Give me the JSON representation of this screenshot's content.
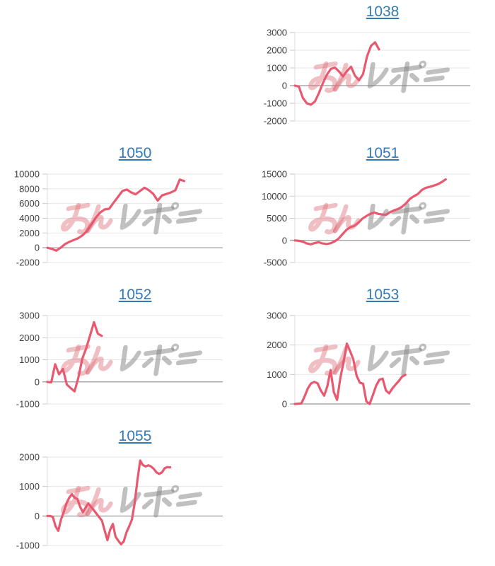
{
  "page": {
    "background": "#ffffff",
    "link_color": "#337ab7",
    "line_color": "#e8586f",
    "grid_color": "#e6e6e6",
    "zero_line_color": "#9a9a9a",
    "axis_color": "#dcdcdc",
    "tick_color": "#c9c9c9",
    "tick_label_color": "#404040"
  },
  "watermark": {
    "text": "みんレポ",
    "pink_color": "rgba(222,112,124,0.45)",
    "gray_color": "rgba(130,130,130,0.50)"
  },
  "chart_data": [
    {
      "type": "line",
      "title": "1038",
      "row": 0,
      "col": 1,
      "ylim": [
        -2000,
        3000
      ],
      "y_step": 1000,
      "y_ticks": [
        "3000",
        "2000",
        "1000",
        "0",
        "-1000",
        "-2000"
      ],
      "x_fraction": 0.48,
      "grid": true,
      "values": [
        0,
        -60,
        -700,
        -1000,
        -1080,
        -900,
        -420,
        150,
        620,
        950,
        1020,
        800,
        520,
        820,
        1070,
        560,
        300,
        650,
        1650,
        2250,
        2450,
        2050
      ]
    },
    {
      "type": "line",
      "title": "1050",
      "row": 1,
      "col": 0,
      "ylim": [
        -2000,
        10000
      ],
      "y_step": 2000,
      "y_ticks": [
        "10000",
        "8000",
        "6000",
        "4000",
        "2000",
        "0",
        "-2000"
      ],
      "x_fraction": 0.78,
      "grid": true,
      "values": [
        0,
        -150,
        -400,
        0,
        500,
        800,
        1050,
        1300,
        1700,
        2300,
        3200,
        4100,
        4800,
        5200,
        5300,
        6100,
        6900,
        7700,
        7900,
        7500,
        7250,
        7700,
        8150,
        7800,
        7300,
        6400,
        7100,
        7300,
        7500,
        7800,
        9250,
        9050
      ]
    },
    {
      "type": "line",
      "title": "1051",
      "row": 1,
      "col": 1,
      "ylim": [
        -5000,
        15000
      ],
      "y_step": 5000,
      "y_ticks": [
        "15000",
        "10000",
        "5000",
        "0",
        "-5000"
      ],
      "x_fraction": 0.86,
      "grid": true,
      "values": [
        0,
        -100,
        -300,
        -700,
        -880,
        -600,
        -430,
        -700,
        -830,
        -650,
        -250,
        400,
        1400,
        2400,
        3000,
        3300,
        4000,
        4900,
        5500,
        6000,
        6300,
        6000,
        5850,
        5800,
        6400,
        6800,
        7100,
        7600,
        8400,
        9400,
        10000,
        10500,
        11400,
        11900,
        12100,
        12400,
        12700,
        13200,
        13800
      ]
    },
    {
      "type": "line",
      "title": "1052",
      "row": 2,
      "col": 0,
      "ylim": [
        -1000,
        3000
      ],
      "y_step": 1000,
      "y_ticks": [
        "3000",
        "2000",
        "1000",
        "0",
        "-1000"
      ],
      "x_fraction": 0.31,
      "grid": true,
      "values": [
        0,
        -20,
        800,
        340,
        580,
        -120,
        -280,
        -430,
        200,
        1050,
        1520,
        2100,
        2700,
        2180,
        2080
      ]
    },
    {
      "type": "line",
      "title": "1053",
      "row": 2,
      "col": 1,
      "ylim": [
        0,
        3000
      ],
      "y_step": 1000,
      "y_ticks": [
        "3000",
        "2000",
        "1000",
        "0"
      ],
      "x_fraction": 0.63,
      "grid": true,
      "values": [
        0,
        10,
        20,
        260,
        530,
        700,
        750,
        700,
        450,
        280,
        610,
        1150,
        400,
        140,
        880,
        1430,
        2050,
        1790,
        1510,
        960,
        720,
        690,
        90,
        0,
        300,
        620,
        820,
        860,
        460,
        360,
        530,
        660,
        780,
        930,
        990
      ]
    },
    {
      "type": "line",
      "title": "1055",
      "row": 3,
      "col": 0,
      "ylim": [
        -1000,
        2000
      ],
      "y_step": 1000,
      "y_ticks": [
        "2000",
        "1000",
        "0",
        "-1000"
      ],
      "x_fraction": 0.7,
      "grid": true,
      "values": [
        0,
        0,
        -30,
        -350,
        -500,
        -120,
        130,
        430,
        620,
        740,
        620,
        580,
        310,
        130,
        280,
        430,
        310,
        200,
        80,
        -40,
        -160,
        -490,
        -820,
        -470,
        -270,
        -700,
        -840,
        -960,
        -860,
        -550,
        -350,
        -120,
        430,
        1210,
        1880,
        1730,
        1680,
        1720,
        1680,
        1600,
        1480,
        1430,
        1480,
        1620,
        1660,
        1650
      ]
    }
  ]
}
